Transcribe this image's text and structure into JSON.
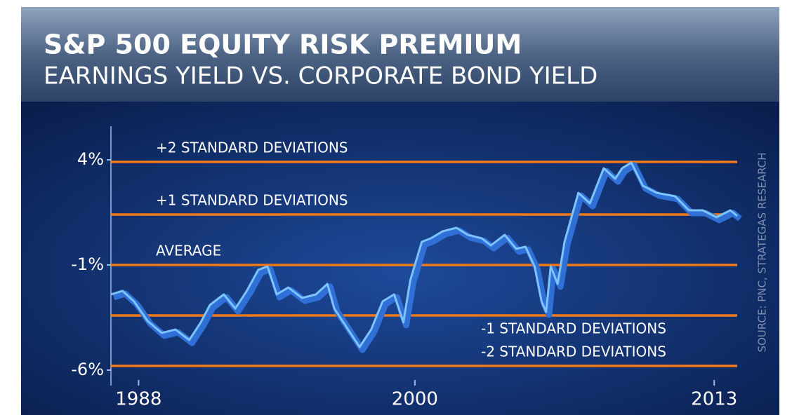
{
  "chart_data": {
    "type": "line",
    "title": "S&P 500 EQUITY RISK PREMIUM",
    "subtitle": "EARNINGS YIELD VS. CORPORATE BOND YIELD",
    "source": "SOURCE: PNC, STRATEGAS RESEARCH",
    "xlim": [
      1986.8,
      2014.0
    ],
    "xticks": [
      1988,
      2000,
      2013
    ],
    "ylim": [
      -6.6,
      5.6
    ],
    "yticks": [
      {
        "value": 4,
        "label": "4%"
      },
      {
        "value": -1,
        "label": "-1%"
      },
      {
        "value": -6,
        "label": "-6%"
      }
    ],
    "reference_lines": [
      {
        "label": "+2 STANDARD DEVIATIONS",
        "value": 3.9
      },
      {
        "label": "+1 STANDARD DEVIATIONS",
        "value": 1.4
      },
      {
        "label": "AVERAGE",
        "value": -1.0
      },
      {
        "label": "-1 STANDARD DEVIATIONS",
        "value": -3.4
      },
      {
        "label": "-2 STANDARD DEVIATIONS",
        "value": -5.8
      }
    ],
    "reference_color": "#f07a1a",
    "series": [
      {
        "color": "#7cc4ff",
        "x": [
          1986.8,
          1987.3,
          1987.8,
          1988.4,
          1989.0,
          1989.6,
          1990.2,
          1990.7,
          1991.1,
          1991.7,
          1992.2,
          1992.7,
          1993.2,
          1993.6,
          1994.0,
          1994.5,
          1995.1,
          1995.7,
          1996.2,
          1996.5,
          1997.1,
          1997.6,
          1998.1,
          1998.6,
          1999.1,
          1999.5,
          1999.8,
          2000.3,
          2000.7,
          2001.2,
          2001.8,
          2002.3,
          2002.9,
          2003.3,
          2003.9,
          2004.4,
          2004.8,
          2005.2,
          2005.5,
          2005.7,
          2005.9,
          2006.2,
          2006.5,
          2006.8,
          2007.1,
          2007.6,
          2008.2,
          2008.7,
          2009.0,
          2009.4,
          2009.9,
          2010.5,
          2011.3,
          2011.9,
          2012.5,
          2013.1,
          2013.7,
          2014.0
        ],
        "values": [
          -2.4,
          -2.23,
          -2.73,
          -3.67,
          -4.23,
          -4.07,
          -4.57,
          -3.73,
          -2.9,
          -2.4,
          -3.07,
          -2.23,
          -1.23,
          -1.07,
          -2.4,
          -2.07,
          -2.57,
          -2.4,
          -1.9,
          -3.07,
          -4.07,
          -4.9,
          -4.07,
          -2.73,
          -2.4,
          -3.73,
          -1.73,
          0.1,
          0.27,
          0.6,
          0.77,
          0.43,
          0.27,
          -0.07,
          0.43,
          -0.23,
          -0.13,
          -1.07,
          -2.73,
          -3.23,
          -1.07,
          -1.9,
          0.1,
          1.27,
          2.43,
          1.93,
          3.6,
          3.1,
          3.6,
          3.87,
          2.77,
          2.43,
          2.27,
          1.6,
          1.6,
          1.27,
          1.6,
          1.33
        ]
      }
    ]
  }
}
